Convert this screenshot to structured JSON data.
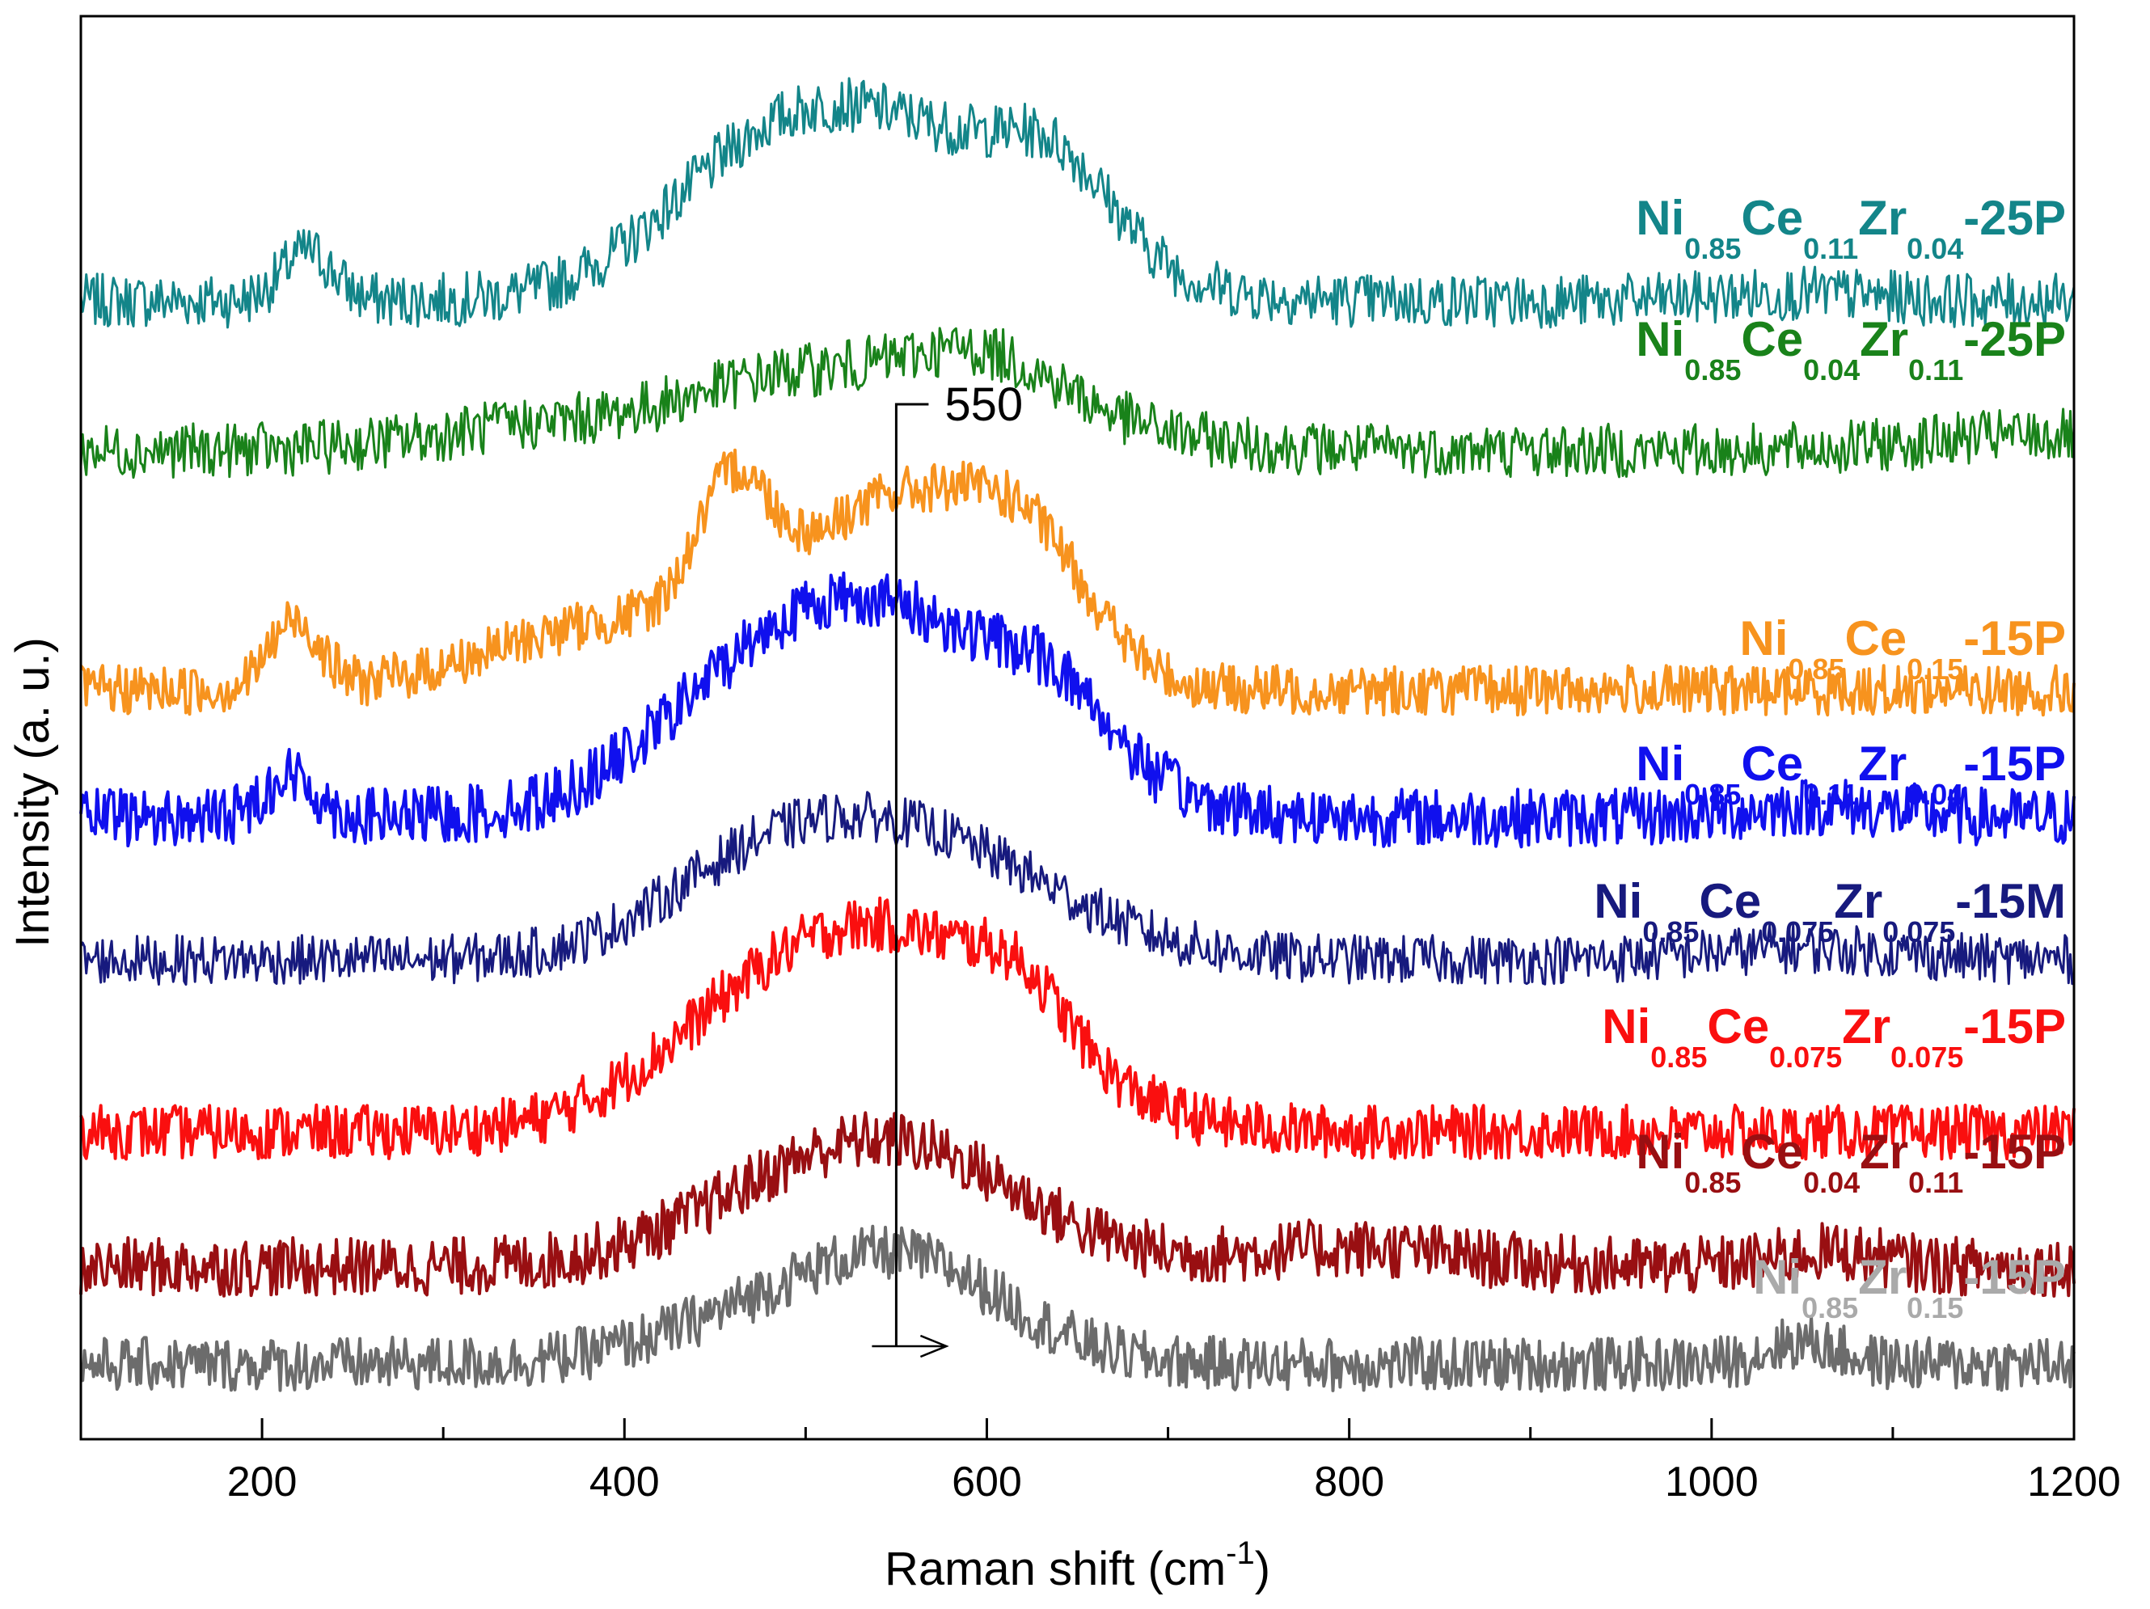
{
  "chart_data": {
    "type": "line",
    "title": "",
    "xlabel": "Raman shift (cm",
    "xlabel_sup": "-1",
    "xlabel_close": ")",
    "ylabel": "Intensity (a. u.)",
    "xlim": [
      100,
      1200
    ],
    "x_ticks": [
      "200",
      "400",
      "600",
      "800",
      "1000",
      "1200"
    ],
    "y_ticks_shown": false,
    "annotation": {
      "text": "550",
      "x": 550
    },
    "series": [
      {
        "name": "Ni0.85Ce0.11Zr0.04-25P",
        "color": "#138589",
        "label": [
          {
            "t": "Ni",
            "s": false
          },
          {
            "t": "0.85",
            "s": true
          },
          {
            "t": "Ce",
            "s": false
          },
          {
            "t": "0.11",
            "s": true
          },
          {
            "t": "Zr",
            "s": false
          },
          {
            "t": "0.04",
            "s": true
          },
          {
            "t": "-25P",
            "s": false
          }
        ],
        "baseline": 1520,
        "noise": 0.12,
        "stroke": 3,
        "peaks": [
          [
            225,
            0.65,
            14
          ],
          [
            470,
            1.2,
            55
          ],
          [
            560,
            2.1,
            75
          ],
          [
            640,
            0.9,
            30
          ],
          [
            1050,
            0.1,
            40
          ]
        ]
      },
      {
        "name": "Ni0.85Ce0.04Zr0.11-25P",
        "color": "#19821a",
        "label": [
          {
            "t": "Ni",
            "s": false
          },
          {
            "t": "0.85",
            "s": true
          },
          {
            "t": "Ce",
            "s": false
          },
          {
            "t": "0.04",
            "s": true
          },
          {
            "t": "Zr",
            "s": false
          },
          {
            "t": "0.11",
            "s": true
          },
          {
            "t": "-25P",
            "s": false
          }
        ],
        "baseline": 1320,
        "noise": 0.12,
        "stroke": 3,
        "peaks": [
          [
            350,
            0.3,
            60
          ],
          [
            470,
            0.4,
            50
          ],
          [
            560,
            0.9,
            85
          ],
          [
            600,
            0.5,
            40
          ],
          [
            1180,
            0.2,
            60
          ]
        ]
      },
      {
        "name": "Ni0.85Ce0.15-15P",
        "color": "#f7931e",
        "label": [
          {
            "t": "Ni",
            "s": false
          },
          {
            "t": "0.85",
            "s": true
          },
          {
            "t": "Ce",
            "s": false
          },
          {
            "t": "0.15",
            "s": true
          },
          {
            "t": "-15P",
            "s": false
          }
        ],
        "baseline": 1000,
        "noise": 0.11,
        "stroke": 4,
        "peaks": [
          [
            218,
            0.9,
            14
          ],
          [
            460,
            1.7,
            20
          ],
          [
            400,
            0.9,
            70
          ],
          [
            550,
            2.4,
            55
          ],
          [
            625,
            1.4,
            35
          ]
        ]
      },
      {
        "name": "Ni0.85Ce0.11Zr0.04-15P",
        "color": "#1010ee",
        "label": [
          {
            "t": "Ni",
            "s": false
          },
          {
            "t": "0.85",
            "s": true
          },
          {
            "t": "Ce",
            "s": false
          },
          {
            "t": "0.11",
            "s": true
          },
          {
            "t": "Zr",
            "s": false
          },
          {
            "t": "0.04",
            "s": true
          },
          {
            "t": "-15P",
            "s": false
          }
        ],
        "baseline": 830,
        "noise": 0.13,
        "stroke": 4,
        "peaks": [
          [
            215,
            0.55,
            14
          ],
          [
            470,
            1.1,
            60
          ],
          [
            555,
            2.4,
            75
          ],
          [
            640,
            0.7,
            30
          ],
          [
            1060,
            0.15,
            40
          ]
        ]
      },
      {
        "name": "Ni0.85Ce0.075Zr0.075-15M",
        "color": "#171a7e",
        "label": [
          {
            "t": "Ni",
            "s": false
          },
          {
            "t": "0.85",
            "s": true
          },
          {
            "t": "Ce",
            "s": false
          },
          {
            "t": "0.075",
            "s": true
          },
          {
            "t": "Zr",
            "s": false
          },
          {
            "t": "0.075",
            "s": true
          },
          {
            "t": "-15M",
            "s": false
          }
        ],
        "baseline": 640,
        "noise": 0.11,
        "stroke": 3,
        "peaks": [
          [
            470,
            0.8,
            55
          ],
          [
            560,
            1.6,
            75
          ],
          [
            1050,
            0.15,
            50
          ]
        ]
      },
      {
        "name": "Ni0.85Ce0.075Zr0.075-15P",
        "color": "#fa0f0f",
        "label": [
          {
            "t": "Ni",
            "s": false
          },
          {
            "t": "0.85",
            "s": true
          },
          {
            "t": "Ce",
            "s": false
          },
          {
            "t": "0.075",
            "s": true
          },
          {
            "t": "Zr",
            "s": false
          },
          {
            "t": "0.075",
            "s": true
          },
          {
            "t": "-15P",
            "s": false
          }
        ],
        "baseline": 410,
        "noise": 0.12,
        "stroke": 4,
        "peaks": [
          [
            470,
            1.1,
            60
          ],
          [
            560,
            2.3,
            70
          ],
          [
            620,
            0.6,
            25
          ]
        ]
      },
      {
        "name": "Ni0.85Ce0.04Zr0.11-15P",
        "color": "#990f12",
        "label": [
          {
            "t": "Ni",
            "s": false
          },
          {
            "t": "0.85",
            "s": true
          },
          {
            "t": "Ce",
            "s": false
          },
          {
            "t": "0.04",
            "s": true
          },
          {
            "t": "Zr",
            "s": false
          },
          {
            "t": "0.11",
            "s": true
          },
          {
            "t": "-15P",
            "s": false
          }
        ],
        "baseline": 230,
        "noise": 0.13,
        "stroke": 4,
        "peaks": [
          [
            480,
            0.6,
            60
          ],
          [
            560,
            1.4,
            65
          ],
          [
            800,
            0.25,
            60
          ],
          [
            1065,
            0.2,
            30
          ]
        ]
      },
      {
        "name": "Ni0.85Zr0.15-15P",
        "color": "#6c6c6c",
        "label": [
          {
            "t": "Ni",
            "s": false
          },
          {
            "t": "0.85",
            "s": true
          },
          {
            "t": "Zr",
            "s": false
          },
          {
            "t": "0.15",
            "s": true
          },
          {
            "t": "-15P",
            "s": false
          }
        ],
        "label_color": "#aaaaaa",
        "baseline": 100,
        "noise": 0.12,
        "stroke": 4,
        "peaks": [
          [
            480,
            0.6,
            60
          ],
          [
            560,
            1.2,
            55
          ],
          [
            1050,
            0.3,
            20
          ]
        ]
      }
    ]
  }
}
